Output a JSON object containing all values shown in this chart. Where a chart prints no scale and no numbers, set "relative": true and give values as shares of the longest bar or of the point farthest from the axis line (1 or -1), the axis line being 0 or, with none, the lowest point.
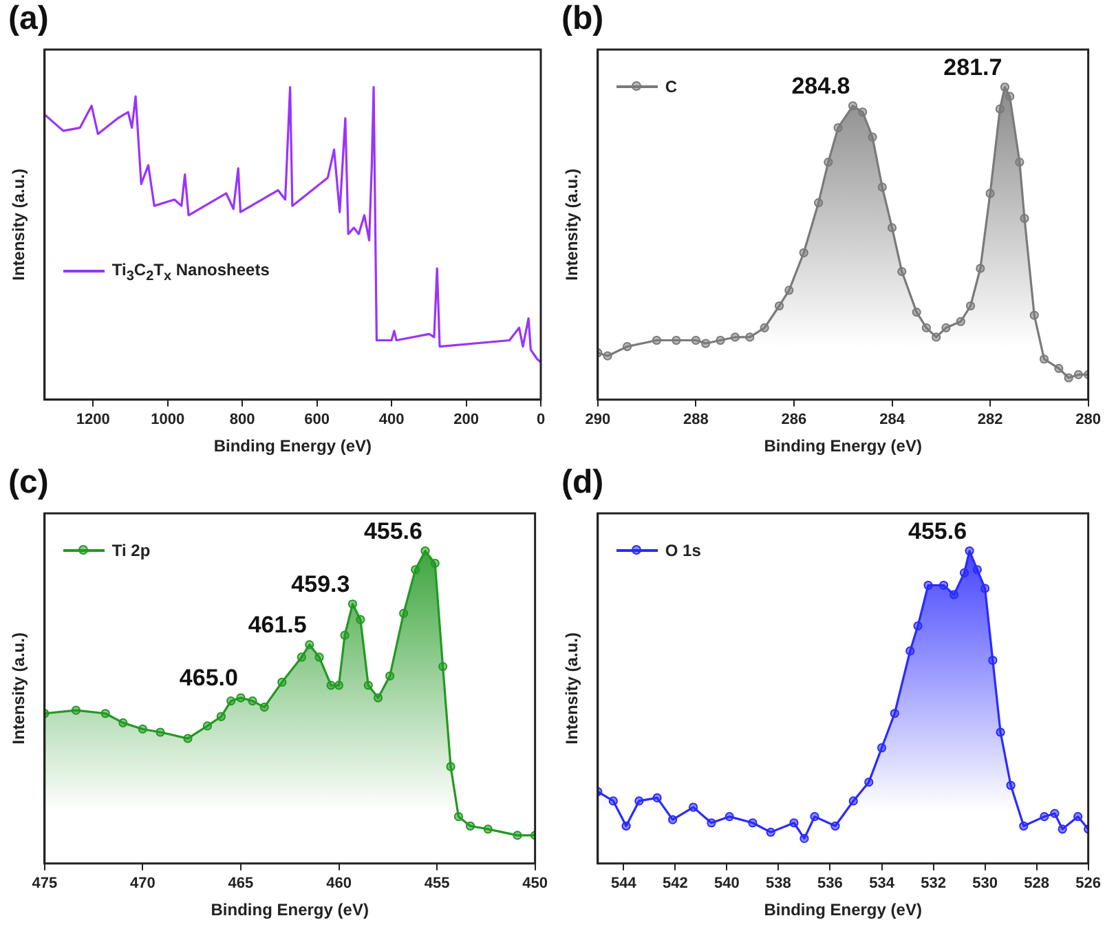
{
  "chart_data": [
    {
      "type": "line",
      "title": "(a)",
      "xlabel": "Binding Energy (eV)",
      "ylabel": "Intensity (a.u.)",
      "relative": true,
      "xlim": [
        1330,
        0
      ],
      "xticks": [
        1200,
        1000,
        800,
        600,
        400,
        200,
        0
      ],
      "legend": "left",
      "marker": "none",
      "x": [
        1328,
        1280,
        1235,
        1204,
        1187,
        1134,
        1106,
        1096,
        1086,
        1071,
        1052,
        1036,
        982,
        963,
        954,
        944,
        843,
        824,
        811,
        805,
        704,
        685,
        672,
        666,
        571,
        554,
        539,
        524,
        516,
        501,
        488,
        473,
        460,
        453,
        448,
        440,
        400,
        393,
        387,
        299,
        286,
        278,
        271,
        84,
        58,
        48,
        33,
        27,
        10,
        0
      ],
      "series": [
        {
          "name": "Ti$_{3}$C$_{2}$T$_{x}$ Nanosheets",
          "color": "#9933ff",
          "values": [
            0.91,
            0.86,
            0.87,
            0.94,
            0.85,
            0.9,
            0.92,
            0.87,
            0.97,
            0.69,
            0.75,
            0.62,
            0.64,
            0.62,
            0.72,
            0.59,
            0.66,
            0.61,
            0.74,
            0.6,
            0.67,
            0.64,
            1.0,
            0.62,
            0.71,
            0.8,
            0.6,
            0.9,
            0.53,
            0.55,
            0.53,
            0.59,
            0.51,
            0.75,
            1.0,
            0.19,
            0.19,
            0.22,
            0.19,
            0.21,
            0.2,
            0.42,
            0.17,
            0.19,
            0.23,
            0.17,
            0.26,
            0.16,
            0.13,
            0.12
          ]
        }
      ]
    },
    {
      "type": "area",
      "title": "(b)",
      "xlabel": "Binding Energy (eV)",
      "ylabel": "Intensity (a.u.)",
      "relative": true,
      "xlim": [
        290,
        280
      ],
      "xticks": [
        290,
        288,
        286,
        284,
        282,
        280
      ],
      "legend": "top left",
      "marker": "circle",
      "x": [
        290.0,
        289.8,
        289.4,
        288.8,
        288.4,
        288.0,
        287.8,
        287.5,
        287.2,
        286.9,
        286.6,
        286.3,
        286.1,
        285.8,
        285.5,
        285.3,
        285.1,
        284.8,
        284.6,
        284.4,
        284.2,
        284.0,
        283.8,
        283.5,
        283.3,
        283.1,
        282.9,
        282.6,
        282.4,
        282.2,
        282.0,
        281.8,
        281.7,
        281.6,
        281.4,
        281.3,
        281.1,
        280.9,
        280.6,
        280.4,
        280.2,
        280.0
      ],
      "series": [
        {
          "name": "C",
          "color": "#7a7a7a",
          "values": [
            0.15,
            0.14,
            0.17,
            0.19,
            0.19,
            0.19,
            0.18,
            0.19,
            0.2,
            0.2,
            0.23,
            0.3,
            0.35,
            0.47,
            0.63,
            0.76,
            0.87,
            0.94,
            0.92,
            0.84,
            0.68,
            0.55,
            0.41,
            0.28,
            0.23,
            0.2,
            0.23,
            0.25,
            0.3,
            0.42,
            0.66,
            0.93,
            1.0,
            0.97,
            0.76,
            0.58,
            0.27,
            0.13,
            0.1,
            0.07,
            0.08,
            0.08
          ]
        }
      ],
      "annotations": [
        {
          "text": "284.8",
          "x": 284.8,
          "y": 0.94
        },
        {
          "text": "281.7",
          "x": 281.7,
          "y": 1.0
        }
      ]
    },
    {
      "type": "area",
      "title": "(c)",
      "xlabel": "Binding Energy (eV)",
      "ylabel": "Intensity (a.u.)",
      "relative": true,
      "xlim": [
        475,
        450
      ],
      "xticks": [
        475,
        470,
        465,
        460,
        455,
        450
      ],
      "legend": "top left",
      "marker": "circle",
      "x": [
        475.0,
        473.4,
        471.9,
        471.0,
        470.0,
        469.1,
        467.7,
        466.7,
        466.0,
        465.5,
        465.0,
        464.4,
        463.8,
        462.9,
        461.9,
        461.5,
        461.0,
        460.4,
        460.0,
        459.7,
        459.3,
        458.9,
        458.5,
        458.0,
        457.4,
        456.7,
        456.1,
        455.6,
        455.1,
        454.7,
        454.3,
        453.9,
        453.3,
        452.4,
        450.9,
        450.0
      ],
      "series": [
        {
          "name": "Ti 2p",
          "color": "#229922",
          "values": [
            0.48,
            0.49,
            0.48,
            0.45,
            0.43,
            0.42,
            0.4,
            0.44,
            0.47,
            0.52,
            0.53,
            0.52,
            0.5,
            0.58,
            0.66,
            0.7,
            0.66,
            0.57,
            0.57,
            0.73,
            0.83,
            0.78,
            0.57,
            0.53,
            0.6,
            0.8,
            0.94,
            1.0,
            0.96,
            0.63,
            0.31,
            0.15,
            0.12,
            0.11,
            0.09,
            0.09
          ]
        }
      ],
      "annotations": [
        {
          "text": "465.0",
          "x": 465.0,
          "y": 0.53
        },
        {
          "text": "461.5",
          "x": 461.5,
          "y": 0.7
        },
        {
          "text": "459.3",
          "x": 459.3,
          "y": 0.83
        },
        {
          "text": "455.6",
          "x": 455.6,
          "y": 1.0
        }
      ]
    },
    {
      "type": "area",
      "title": "(d)",
      "xlabel": "Binding Energy (eV)",
      "ylabel": "Intensity (a.u.)",
      "relative": true,
      "xlim": [
        545,
        526
      ],
      "xticks": [
        544,
        542,
        540,
        538,
        536,
        534,
        532,
        530,
        528,
        526
      ],
      "legend": "top left",
      "marker": "circle",
      "x": [
        545.0,
        544.4,
        543.9,
        543.4,
        542.7,
        542.1,
        541.3,
        540.6,
        539.9,
        539.0,
        538.3,
        537.4,
        537.0,
        536.6,
        535.8,
        535.1,
        534.5,
        534.0,
        533.5,
        532.9,
        532.6,
        532.2,
        531.6,
        531.2,
        530.8,
        530.6,
        530.3,
        530.0,
        529.7,
        529.4,
        529.0,
        528.5,
        527.7,
        527.3,
        527.0,
        526.4,
        526.0
      ],
      "series": [
        {
          "name": "O 1s",
          "color": "#2a2aff",
          "values": [
            0.23,
            0.2,
            0.12,
            0.2,
            0.21,
            0.14,
            0.18,
            0.13,
            0.15,
            0.13,
            0.1,
            0.13,
            0.08,
            0.15,
            0.12,
            0.2,
            0.26,
            0.37,
            0.48,
            0.68,
            0.76,
            0.89,
            0.89,
            0.86,
            0.93,
            1.0,
            0.94,
            0.88,
            0.65,
            0.42,
            0.25,
            0.12,
            0.15,
            0.16,
            0.11,
            0.15,
            0.11
          ]
        }
      ],
      "annotations": [
        {
          "text": "455.6",
          "x": 530.6,
          "y": 1.0
        }
      ]
    }
  ]
}
